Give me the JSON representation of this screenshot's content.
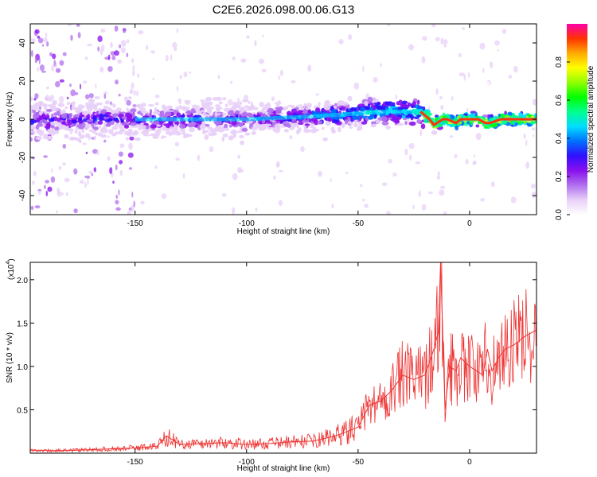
{
  "figure_title": "C2E6.2026.098.00.06.G13",
  "chart_data": [
    {
      "type": "heatmap",
      "title": "",
      "xlabel": "Height of straight line (km)",
      "ylabel": "Frequency (Hz)",
      "xlim": [
        -197,
        30
      ],
      "ylim": [
        -50,
        50
      ],
      "x_ticks": [
        -150,
        -100,
        -50,
        0
      ],
      "y_ticks": [
        -40,
        -20,
        0,
        20,
        40
      ],
      "colorbar": {
        "label": "Normalized spectral amplitude",
        "range": [
          0,
          1
        ],
        "ticks": [
          0.0,
          0.2,
          0.4,
          0.6,
          0.8
        ],
        "colors": [
          "#ffffff",
          "#e8d0f8",
          "#b070ee",
          "#8a10ee",
          "#3010ff",
          "#0070ff",
          "#00ddff",
          "#00ff90",
          "#00ff00",
          "#90ff00",
          "#ffff00",
          "#ffaa00",
          "#ff3300",
          "#ff00aa"
        ]
      },
      "ridge": {
        "x": [
          -197,
          -180,
          -160,
          -150,
          -130,
          -110,
          -100,
          -90,
          -70,
          -50,
          -40,
          -30,
          -22,
          -18,
          -16,
          -12,
          -10,
          -6,
          -4,
          0,
          4,
          7,
          9,
          14,
          18,
          22,
          30
        ],
        "y": [
          0,
          0,
          0,
          0,
          0,
          0,
          0,
          0.5,
          1.5,
          3,
          4,
          4,
          4,
          0,
          -3,
          0,
          0,
          -2,
          0,
          0,
          0,
          -2,
          -2,
          0,
          0,
          0,
          0
        ]
      }
    },
    {
      "type": "line",
      "title": "",
      "xlabel": "Height of straight line (km)",
      "ylabel": "SNR (10 * v/v)",
      "scale_label": "(x10",
      "scale_exp": "4",
      "scale_close": ")",
      "xlim": [
        -197,
        30
      ],
      "ylim": [
        0,
        2.2
      ],
      "x_ticks": [
        -150,
        -100,
        -50,
        0
      ],
      "y_ticks": [
        0.5,
        1.0,
        1.5,
        2.0
      ],
      "series": [
        {
          "color": "#ee3333",
          "x": [
            -197,
            -180,
            -160,
            -150,
            -140,
            -136,
            -130,
            -120,
            -110,
            -100,
            -90,
            -80,
            -70,
            -60,
            -50,
            -45,
            -40,
            -35,
            -30,
            -25,
            -20,
            -16,
            -14,
            -13,
            -11,
            -9,
            -6,
            -4,
            -2,
            0,
            3,
            6,
            8,
            10,
            13,
            16,
            20,
            25,
            30
          ],
          "y": [
            0.03,
            0.03,
            0.05,
            0.06,
            0.08,
            0.2,
            0.1,
            0.11,
            0.12,
            0.1,
            0.11,
            0.13,
            0.14,
            0.2,
            0.3,
            0.55,
            0.6,
            0.72,
            0.9,
            0.85,
            0.9,
            1.2,
            1.4,
            2.2,
            0.5,
            1.0,
            0.95,
            1.1,
            1.05,
            1.0,
            0.95,
            0.9,
            1.2,
            0.95,
            1.1,
            1.2,
            1.25,
            1.35,
            1.42
          ]
        }
      ]
    }
  ]
}
